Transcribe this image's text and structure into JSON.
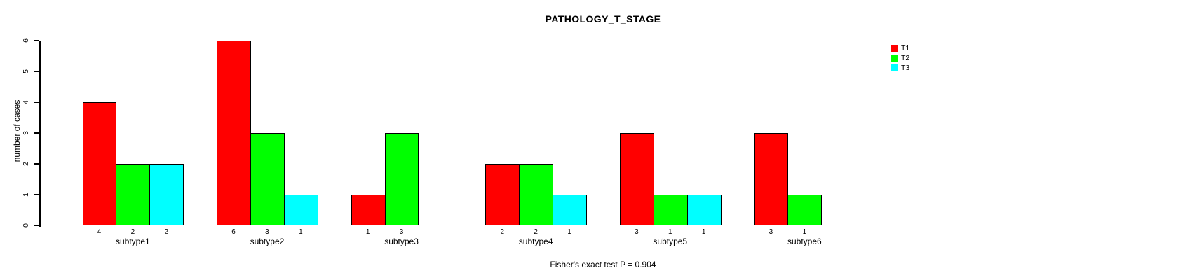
{
  "page": {
    "background": "#ffffff"
  },
  "chart_data": {
    "type": "bar",
    "title": "PATHOLOGY_T_STAGE",
    "ylabel": "number of cases",
    "xlabel": "",
    "ylim": [
      0,
      6
    ],
    "yticks": [
      "0",
      "1",
      "2",
      "3",
      "4",
      "5",
      "6"
    ],
    "grid": false,
    "legend_position": "top-right",
    "categories": [
      "subtype1",
      "subtype2",
      "subtype3",
      "subtype4",
      "subtype5",
      "subtype6"
    ],
    "series": [
      {
        "name": "T1",
        "color": "#ff0000",
        "values": [
          4,
          6,
          1,
          2,
          3,
          3
        ]
      },
      {
        "name": "T2",
        "color": "#00ff00",
        "values": [
          2,
          3,
          3,
          2,
          1,
          1
        ]
      },
      {
        "name": "T3",
        "color": "#00ffff",
        "values": [
          2,
          1,
          0,
          1,
          1,
          0
        ]
      }
    ],
    "bar_value_labels": [
      [
        "4",
        "2",
        "2"
      ],
      [
        "6",
        "3",
        "1"
      ],
      [
        "1",
        "3",
        ""
      ],
      [
        "2",
        "2",
        "1"
      ],
      [
        "3",
        "1",
        "1"
      ],
      [
        "3",
        "1",
        ""
      ]
    ],
    "annotation": "Fisher's exact test P = 0.904"
  }
}
